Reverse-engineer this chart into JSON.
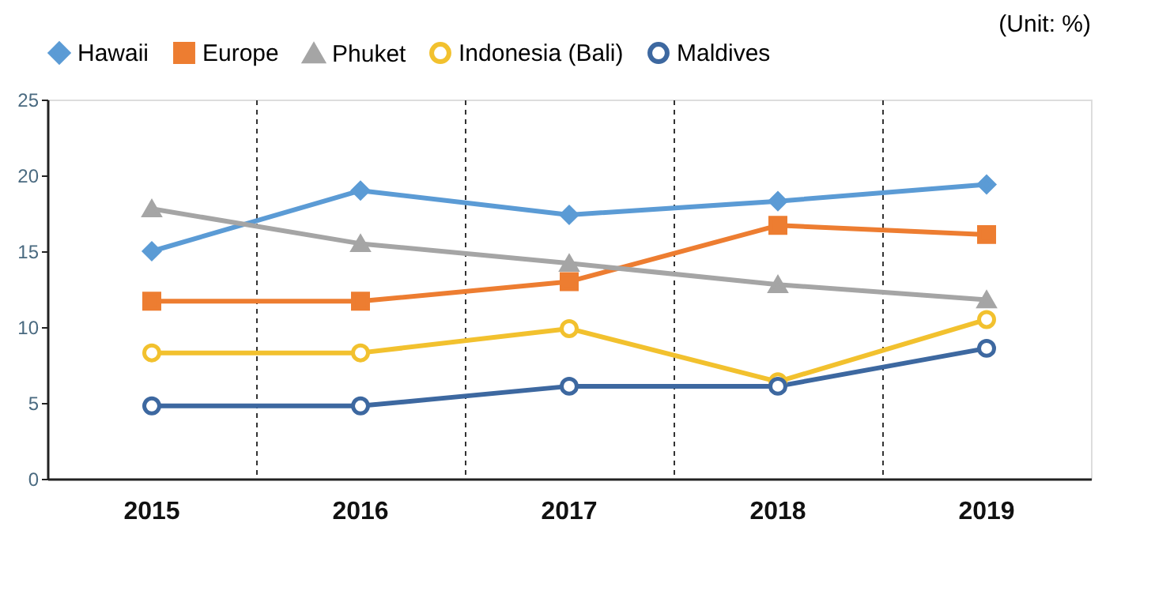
{
  "chart_data": {
    "type": "line",
    "categories": [
      "2015",
      "2016",
      "2017",
      "2018",
      "2019"
    ],
    "series": [
      {
        "name": "Hawaii",
        "color": "#5b9bd5",
        "marker": "diamond",
        "values": [
          15.0,
          19.0,
          17.4,
          18.3,
          19.4
        ]
      },
      {
        "name": "Europe",
        "color": "#ed7d31",
        "marker": "square",
        "values": [
          11.7,
          11.7,
          13.0,
          16.7,
          16.1
        ]
      },
      {
        "name": "Phuket",
        "color": "#a5a5a5",
        "marker": "triangle",
        "values": [
          17.8,
          15.5,
          14.2,
          12.8,
          11.8
        ]
      },
      {
        "name": "Indonesia (Bali)",
        "color": "#f2c12e",
        "marker": "circle",
        "values": [
          8.3,
          8.3,
          9.9,
          6.4,
          10.5
        ]
      },
      {
        "name": "Maldives",
        "color": "#3d68a0",
        "marker": "circle",
        "values": [
          4.8,
          4.8,
          6.1,
          6.1,
          8.6
        ]
      }
    ],
    "ylim": [
      0,
      25
    ],
    "yticks": [
      0,
      5,
      10,
      15,
      20,
      25
    ],
    "grid": "x",
    "legend": "top",
    "line_style": "solid",
    "annotations": [
      "(Unit: %)"
    ]
  }
}
